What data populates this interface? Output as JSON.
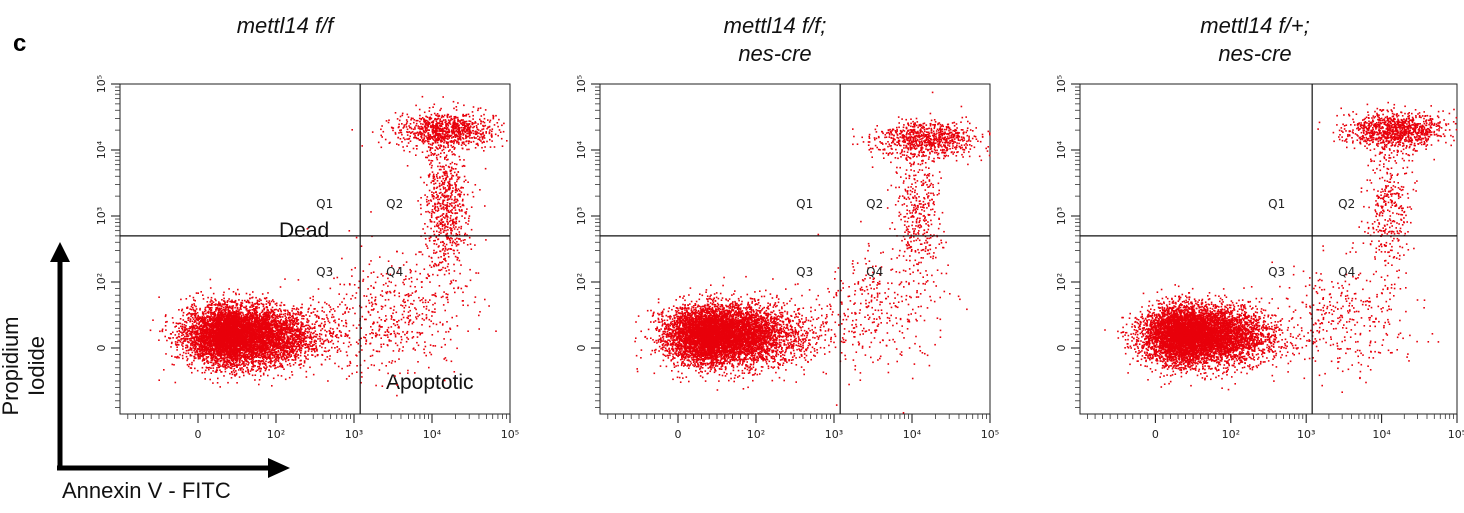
{
  "figure": {
    "panel_letter": "c",
    "y_axis_label": "Propidium Iodide",
    "x_axis_label": "Annexin V - FITC",
    "annotations": [
      "Dead",
      "Apoptotic"
    ],
    "point_color": "#e8000b"
  },
  "chart_data": [
    {
      "type": "scatter",
      "title": "mettl14 f/f",
      "scale": "biexponential",
      "xlim": [
        -100,
        100000
      ],
      "ylim": [
        -100,
        100000
      ],
      "x_tick_labels": [
        "0",
        "10²",
        "10³",
        "10⁴",
        "10⁵"
      ],
      "y_tick_labels": [
        "0",
        "10²",
        "10³",
        "10⁴",
        "10⁵"
      ],
      "quadrant_gate": {
        "x": 1200,
        "y": 500
      },
      "quadrant_labels": [
        "Q1",
        "Q2",
        "Q3",
        "Q4"
      ],
      "clusters": [
        {
          "name": "live",
          "center": [
            50,
            20
          ],
          "approx_points": 7000
        },
        {
          "name": "late-apoptotic-dead",
          "center": [
            15000,
            20000
          ],
          "approx_points": 900
        },
        {
          "name": "apoptotic-streak",
          "center": [
            15000,
            1500
          ],
          "approx_points": 700
        },
        {
          "name": "early-apoptotic",
          "center": [
            3000,
            50
          ],
          "approx_points": 500
        }
      ]
    },
    {
      "type": "scatter",
      "title": "mettl14 f/f;\nnes-cre",
      "scale": "biexponential",
      "xlim": [
        -100,
        100000
      ],
      "ylim": [
        -100,
        100000
      ],
      "x_tick_labels": [
        "0",
        "10²",
        "10³",
        "10⁴",
        "10⁵"
      ],
      "y_tick_labels": [
        "0",
        "10²",
        "10³",
        "10⁴",
        "10⁵"
      ],
      "quadrant_gate": {
        "x": 1200,
        "y": 500
      },
      "quadrant_labels": [
        "Q1",
        "Q2",
        "Q3",
        "Q4"
      ],
      "clusters": [
        {
          "name": "live",
          "center": [
            50,
            20
          ],
          "approx_points": 7000
        },
        {
          "name": "late-apoptotic-dead",
          "center": [
            15000,
            15000
          ],
          "approx_points": 800
        },
        {
          "name": "apoptotic-streak",
          "center": [
            12000,
            1000
          ],
          "approx_points": 400
        },
        {
          "name": "early-apoptotic",
          "center": [
            3000,
            50
          ],
          "approx_points": 350
        }
      ]
    },
    {
      "type": "scatter",
      "title": "mettl14 f/+;\nnes-cre",
      "scale": "biexponential",
      "xlim": [
        -100,
        100000
      ],
      "ylim": [
        -100,
        100000
      ],
      "x_tick_labels": [
        "0",
        "10²",
        "10³",
        "10⁴",
        "10⁵"
      ],
      "y_tick_labels": [
        "0",
        "10²",
        "10³",
        "10⁴",
        "10⁵"
      ],
      "quadrant_gate": {
        "x": 1200,
        "y": 500
      },
      "quadrant_labels": [
        "Q1",
        "Q2",
        "Q3",
        "Q4"
      ],
      "clusters": [
        {
          "name": "live",
          "center": [
            50,
            20
          ],
          "approx_points": 7000
        },
        {
          "name": "late-apoptotic-dead",
          "center": [
            15000,
            20000
          ],
          "approx_points": 1000
        },
        {
          "name": "apoptotic-streak",
          "center": [
            12000,
            1500
          ],
          "approx_points": 350
        },
        {
          "name": "early-apoptotic",
          "center": [
            3000,
            50
          ],
          "approx_points": 350
        }
      ]
    }
  ]
}
